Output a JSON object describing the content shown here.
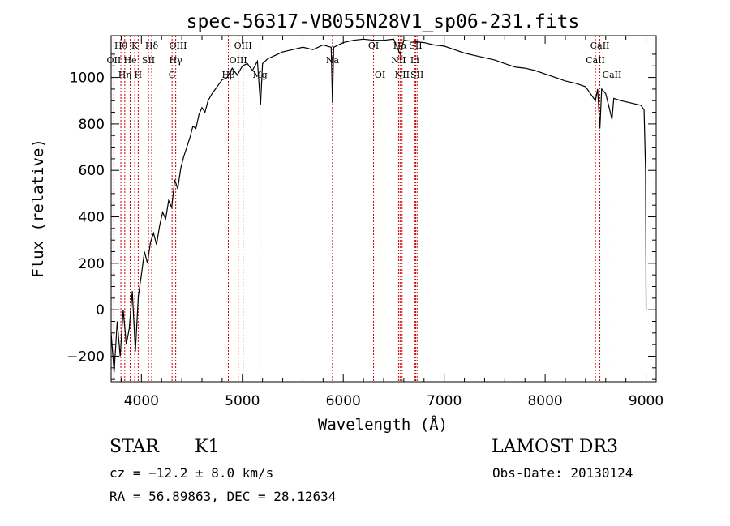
{
  "chart_data": {
    "type": "line",
    "title": "spec-56317-VB055N28V1_sp06-231.fits",
    "xlabel": "Wavelength (Å)",
    "ylabel": "Flux (relative)",
    "xlim": [
      3700,
      9100
    ],
    "ylim": [
      -310,
      1180
    ],
    "x_ticks": [
      4000,
      5000,
      6000,
      7000,
      8000,
      9000
    ],
    "y_ticks": [
      -200,
      0,
      200,
      400,
      600,
      800,
      1000
    ],
    "line_color": "#000000",
    "marker_color": "#cc0000",
    "series": [
      {
        "name": "spectrum",
        "points": [
          [
            3700,
            -100
          ],
          [
            3730,
            -270
          ],
          [
            3760,
            -50
          ],
          [
            3790,
            -200
          ],
          [
            3820,
            0
          ],
          [
            3850,
            -150
          ],
          [
            3880,
            -80
          ],
          [
            3910,
            80
          ],
          [
            3940,
            -180
          ],
          [
            3970,
            60
          ],
          [
            4000,
            150
          ],
          [
            4030,
            250
          ],
          [
            4060,
            200
          ],
          [
            4090,
            290
          ],
          [
            4120,
            330
          ],
          [
            4150,
            280
          ],
          [
            4180,
            360
          ],
          [
            4210,
            420
          ],
          [
            4240,
            390
          ],
          [
            4270,
            470
          ],
          [
            4300,
            440
          ],
          [
            4330,
            560
          ],
          [
            4360,
            520
          ],
          [
            4390,
            610
          ],
          [
            4420,
            660
          ],
          [
            4450,
            700
          ],
          [
            4480,
            740
          ],
          [
            4510,
            790
          ],
          [
            4540,
            780
          ],
          [
            4570,
            840
          ],
          [
            4600,
            870
          ],
          [
            4630,
            850
          ],
          [
            4660,
            900
          ],
          [
            4700,
            930
          ],
          [
            4750,
            960
          ],
          [
            4800,
            990
          ],
          [
            4850,
            1000
          ],
          [
            4900,
            1040
          ],
          [
            4950,
            1010
          ],
          [
            5000,
            1050
          ],
          [
            5050,
            1060
          ],
          [
            5100,
            1030
          ],
          [
            5150,
            1070
          ],
          [
            5180,
            880
          ],
          [
            5200,
            1060
          ],
          [
            5250,
            1080
          ],
          [
            5300,
            1090
          ],
          [
            5400,
            1110
          ],
          [
            5500,
            1120
          ],
          [
            5600,
            1130
          ],
          [
            5700,
            1120
          ],
          [
            5800,
            1140
          ],
          [
            5880,
            1130
          ],
          [
            5893,
            890
          ],
          [
            5905,
            1130
          ],
          [
            6000,
            1150
          ],
          [
            6100,
            1160
          ],
          [
            6200,
            1165
          ],
          [
            6300,
            1160
          ],
          [
            6400,
            1160
          ],
          [
            6500,
            1165
          ],
          [
            6563,
            1100
          ],
          [
            6600,
            1160
          ],
          [
            6700,
            1155
          ],
          [
            6800,
            1150
          ],
          [
            6900,
            1140
          ],
          [
            7000,
            1135
          ],
          [
            7100,
            1120
          ],
          [
            7200,
            1105
          ],
          [
            7300,
            1095
          ],
          [
            7400,
            1085
          ],
          [
            7500,
            1075
          ],
          [
            7600,
            1060
          ],
          [
            7700,
            1045
          ],
          [
            7800,
            1040
          ],
          [
            7900,
            1030
          ],
          [
            8000,
            1015
          ],
          [
            8100,
            1000
          ],
          [
            8200,
            985
          ],
          [
            8300,
            975
          ],
          [
            8400,
            960
          ],
          [
            8498,
            900
          ],
          [
            8520,
            950
          ],
          [
            8542,
            780
          ],
          [
            8560,
            950
          ],
          [
            8600,
            930
          ],
          [
            8662,
            820
          ],
          [
            8680,
            910
          ],
          [
            8750,
            900
          ],
          [
            8850,
            890
          ],
          [
            8950,
            880
          ],
          [
            8980,
            860
          ],
          [
            8995,
            600
          ],
          [
            9000,
            0
          ]
        ]
      }
    ],
    "line_markers": [
      {
        "label": "Hθ",
        "wl": 3797,
        "row": 1
      },
      {
        "label": "OII",
        "wl": 3727,
        "row": 2
      },
      {
        "label": "Hη",
        "wl": 3835,
        "row": 3
      },
      {
        "label": "K",
        "wl": 3934,
        "row": 1
      },
      {
        "label": "H",
        "wl": 3968,
        "row": 3
      },
      {
        "label": "He",
        "wl": 3889,
        "row": 2
      },
      {
        "label": "SII",
        "wl": 4070,
        "row": 2
      },
      {
        "label": "Hδ",
        "wl": 4102,
        "row": 1
      },
      {
        "label": "Hγ",
        "wl": 4340,
        "row": 2
      },
      {
        "label": "OIII",
        "wl": 4363,
        "row": 1
      },
      {
        "label": "G",
        "wl": 4304,
        "row": 3
      },
      {
        "label": "Hβ",
        "wl": 4861,
        "row": 3
      },
      {
        "label": "OIII",
        "wl": 4959,
        "row": 2
      },
      {
        "label": "OIII",
        "wl": 5007,
        "row": 1
      },
      {
        "label": "Mg",
        "wl": 5175,
        "row": 3
      },
      {
        "label": "Na",
        "wl": 5893,
        "row": 2
      },
      {
        "label": "OI",
        "wl": 6300,
        "row": 1
      },
      {
        "label": "OI",
        "wl": 6364,
        "row": 3
      },
      {
        "label": "NII",
        "wl": 6548,
        "row": 2
      },
      {
        "label": "Hα",
        "wl": 6563,
        "row": 1
      },
      {
        "label": "NII",
        "wl": 6583,
        "row": 3
      },
      {
        "label": "SII",
        "wl": 6717,
        "row": 1
      },
      {
        "label": "Li",
        "wl": 6708,
        "row": 2
      },
      {
        "label": "SII",
        "wl": 6731,
        "row": 3
      },
      {
        "label": "CaII",
        "wl": 8498,
        "row": 2
      },
      {
        "label": "CaII",
        "wl": 8542,
        "row": 1
      },
      {
        "label": "CaII",
        "wl": 8662,
        "row": 3
      }
    ]
  },
  "info": {
    "object_type": "STAR",
    "subclass": "K1",
    "survey": "LAMOST DR3",
    "cz": "cz = −12.2 ± 8.0 km/s",
    "obs_date": "Obs-Date: 20130124",
    "coords": "RA =  56.89863, DEC =  28.12634"
  }
}
